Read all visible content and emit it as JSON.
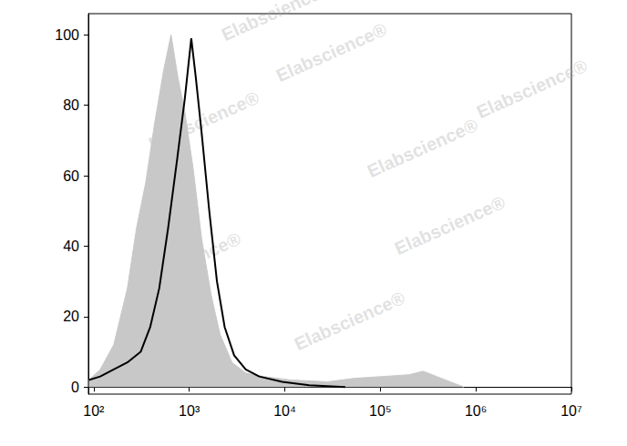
{
  "chart_data": {
    "type": "line",
    "log": "x",
    "grid": false,
    "xlim": [
      88,
      10000000
    ],
    "xticks": [
      {
        "value": 100,
        "label": "10²"
      },
      {
        "value": 1000,
        "label": "10³"
      },
      {
        "value": 10000,
        "label": "10⁴"
      },
      {
        "value": 100000,
        "label": "10⁵"
      },
      {
        "value": 1000000,
        "label": "10⁶"
      },
      {
        "value": 10000000,
        "label": "10⁷"
      }
    ],
    "ylim": [
      -2,
      106
    ],
    "yticks": [
      0,
      20,
      40,
      60,
      80,
      100
    ],
    "annotations": [
      "Elabscience®",
      "Elabscience®",
      "Elabscience®",
      "Elabscience®",
      "Elabscience®",
      "Elabscience®",
      "Elabscience®",
      "Elabscience®"
    ],
    "series": [
      {
        "type": "area",
        "color": "#c8c8c8",
        "x": [
          89,
          117,
          162,
          225,
          280,
          350,
          435,
          540,
          645,
          760,
          900,
          1100,
          1350,
          1700,
          2100,
          2800,
          3900,
          6000,
          11700,
          28000,
          54000,
          105000,
          200000,
          280000,
          390000,
          540000,
          750000
        ],
        "values": [
          2,
          5,
          12,
          28,
          45,
          58,
          75,
          90,
          100,
          88,
          78,
          62,
          42,
          26,
          15,
          7,
          4,
          3,
          2,
          1.5,
          2.5,
          3,
          3.5,
          4.5,
          3,
          1.5,
          0
        ]
      },
      {
        "type": "line",
        "color": "#000000",
        "x": [
          89,
          117,
          162,
          225,
          310,
          390,
          485,
          600,
          750,
          900,
          1050,
          1170,
          1350,
          1620,
          1950,
          2350,
          2950,
          3900,
          5400,
          9400,
          18000,
          43000
        ],
        "values": [
          2,
          3,
          5,
          7,
          10,
          17,
          28,
          45,
          65,
          82,
          99,
          88,
          72,
          50,
          30,
          17,
          9,
          5,
          3,
          1.5,
          0.5,
          0
        ]
      }
    ]
  }
}
